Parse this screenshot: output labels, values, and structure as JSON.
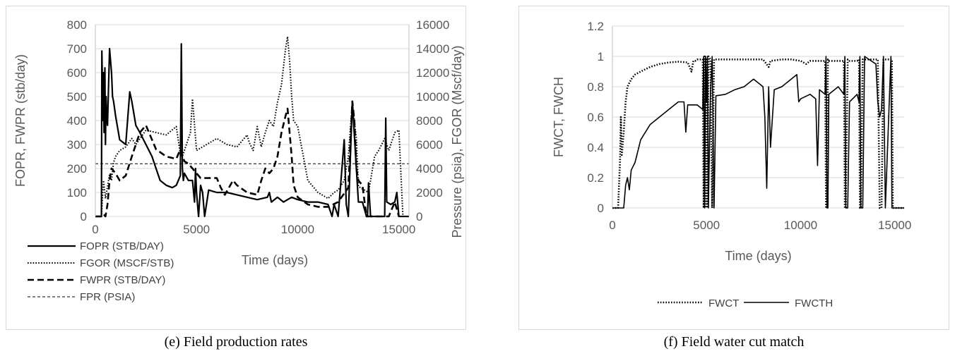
{
  "captions": {
    "e": "(e)  Field production rates",
    "f": "(f)  Field water cut match"
  },
  "chart_data": [
    {
      "type": "line",
      "xlabel": "Time (days)",
      "ylabel": "FOPR, FWPR (stb/day)",
      "y2label": "Pressure (psia), FGOR (Mscf/day)",
      "xlim": [
        0,
        15500
      ],
      "ylim": [
        0,
        800
      ],
      "y2lim": [
        0,
        16000
      ],
      "xticks": [
        0,
        5000,
        10000,
        15000
      ],
      "yticks": [
        0,
        100,
        200,
        300,
        400,
        500,
        600,
        700,
        800
      ],
      "y2ticks": [
        0,
        2000,
        4000,
        6000,
        8000,
        10000,
        12000,
        14000,
        16000
      ],
      "grid": "horizontal",
      "legend_position": "bottom-left",
      "series": [
        {
          "name": "FOPR  (STB/DAY)",
          "axis": "left",
          "style": "solid",
          "color": "#000000",
          "x": [
            0,
            300,
            320,
            380,
            400,
            430,
            470,
            500,
            530,
            560,
            600,
            700,
            800,
            850,
            900,
            1000,
            1200,
            1500,
            1700,
            1800,
            2000,
            2200,
            2500,
            2800,
            3000,
            3200,
            3500,
            3800,
            4000,
            4200,
            4250,
            4300,
            4350,
            4400,
            4600,
            4800,
            4900,
            4950,
            5000,
            5100,
            5200,
            5300,
            5400,
            5600,
            6000,
            6500,
            7000,
            7500,
            8000,
            8500,
            8600,
            8700,
            9000,
            9300,
            9500,
            9700,
            10000,
            10500,
            11000,
            11500,
            11700,
            11800,
            12000,
            12300,
            12400,
            12500,
            12700,
            12900,
            13000,
            13200,
            13400,
            13450,
            13500,
            13600,
            14000,
            14300,
            14350,
            14400,
            14600,
            14800,
            14900,
            15000,
            15100,
            15500
          ],
          "y": [
            0,
            0,
            690,
            400,
            600,
            350,
            620,
            300,
            500,
            420,
            380,
            700,
            600,
            500,
            480,
            420,
            320,
            300,
            520,
            480,
            380,
            350,
            300,
            250,
            200,
            150,
            130,
            120,
            130,
            170,
            720,
            200,
            150,
            180,
            150,
            150,
            60,
            200,
            100,
            0,
            130,
            100,
            0,
            110,
            100,
            100,
            90,
            80,
            70,
            80,
            100,
            60,
            80,
            60,
            70,
            80,
            70,
            60,
            60,
            50,
            0,
            50,
            0,
            320,
            50,
            0,
            480,
            200,
            60,
            60,
            0,
            0,
            140,
            0,
            0,
            0,
            410,
            60,
            50,
            60,
            100,
            0,
            0,
            0
          ]
        },
        {
          "name": "FGOR  (MSCF/STB)",
          "axis": "right",
          "style": "dotted",
          "color": "#000000",
          "x": [
            0,
            300,
            400,
            500,
            600,
            700,
            800,
            900,
            1000,
            1200,
            1500,
            1800,
            2000,
            2500,
            3000,
            3500,
            4000,
            4200,
            4300,
            4500,
            4700,
            4800,
            5000,
            5500,
            6000,
            6500,
            7000,
            7500,
            7600,
            7800,
            8000,
            8200,
            8400,
            8600,
            8800,
            9000,
            9200,
            9400,
            9500,
            9600,
            9700,
            9800,
            10000,
            10500,
            11000,
            11500,
            11800,
            12000,
            12300,
            12500,
            12700,
            12900,
            13000,
            13500,
            13800,
            14000,
            14300,
            14500,
            14800,
            15000,
            15200
          ],
          "y": [
            0,
            0,
            3000,
            1500,
            2500,
            3500,
            3000,
            4500,
            5000,
            5500,
            5800,
            6500,
            6000,
            7200,
            7000,
            6800,
            7500,
            5200,
            5000,
            6000,
            7000,
            9800,
            5500,
            6000,
            6500,
            6000,
            5800,
            6800,
            6200,
            5500,
            7500,
            5800,
            7000,
            8000,
            7500,
            9500,
            11000,
            14000,
            15000,
            13000,
            10000,
            8000,
            7500,
            3000,
            2000,
            1500,
            2000,
            2200,
            3000,
            5000,
            9500,
            6500,
            2500,
            2000,
            5000,
            5500,
            6500,
            5500,
            7000,
            7200,
            0
          ]
        },
        {
          "name": "FWPR  (STB/DAY)",
          "axis": "left",
          "style": "dashed",
          "color": "#000000",
          "x": [
            0,
            300,
            400,
            500,
            600,
            700,
            800,
            1000,
            1200,
            1500,
            1800,
            2000,
            2200,
            2500,
            2800,
            3000,
            3500,
            4000,
            4200,
            4400,
            4600,
            4800,
            5000,
            5200,
            5500,
            6000,
            6200,
            6400,
            6800,
            7000,
            7500,
            8000,
            8200,
            8400,
            8600,
            8800,
            9000,
            9200,
            9400,
            9500,
            9600,
            9700,
            9800,
            10000,
            10500,
            11000,
            11500,
            12000,
            12500,
            12700,
            12800,
            12900,
            13000,
            13200,
            13400,
            13600,
            14000,
            14500,
            14800,
            15000
          ],
          "y": [
            0,
            0,
            10,
            0,
            50,
            150,
            200,
            180,
            150,
            170,
            250,
            300,
            350,
            380,
            320,
            280,
            250,
            240,
            280,
            230,
            220,
            200,
            180,
            160,
            160,
            160,
            120,
            90,
            150,
            130,
            100,
            90,
            150,
            200,
            180,
            200,
            250,
            350,
            420,
            450,
            350,
            250,
            130,
            80,
            50,
            40,
            40,
            60,
            120,
            480,
            400,
            200,
            150,
            130,
            0,
            0,
            0,
            0,
            60,
            0
          ]
        },
        {
          "name": "FPR  (PSIA)",
          "axis": "left",
          "style": "thin-dashed",
          "color": "#000000",
          "x": [
            0,
            15500
          ],
          "y": [
            220,
            220
          ]
        }
      ]
    },
    {
      "type": "line",
      "xlabel": "Time (days)",
      "ylabel": "FWCT, FWCH",
      "xlim": [
        0,
        15500
      ],
      "ylim": [
        0,
        1.2
      ],
      "xticks": [
        0,
        5000,
        10000,
        15000
      ],
      "yticks": [
        0,
        0.2,
        0.4,
        0.6,
        0.8,
        1,
        1.2
      ],
      "grid": "horizontal",
      "legend_position": "bottom",
      "series": [
        {
          "name": "FWCT",
          "style": "dotted",
          "color": "#000000",
          "x": [
            0,
            300,
            400,
            450,
            500,
            600,
            700,
            800,
            1000,
            1200,
            1500,
            2000,
            2500,
            3000,
            3500,
            4000,
            4200,
            4300,
            4400,
            4500,
            4800,
            4850,
            4900,
            4950,
            5000,
            5050,
            5100,
            5200,
            5300,
            5400,
            5500,
            6000,
            7000,
            8000,
            8300,
            8400,
            9000,
            9500,
            10000,
            10300,
            10500,
            11000,
            11300,
            11350,
            11400,
            11450,
            11500,
            12000,
            12300,
            12350,
            12400,
            12500,
            12600,
            13000,
            13100,
            13150,
            13200,
            13300,
            13400,
            14000,
            14100,
            14200,
            14300,
            14400,
            14500,
            14800,
            14850,
            14900,
            14950,
            15000,
            15100,
            15500
          ],
          "y": [
            0,
            0,
            0.3,
            0.6,
            0.35,
            0.5,
            0.7,
            0.8,
            0.85,
            0.88,
            0.9,
            0.93,
            0.95,
            0.96,
            0.965,
            0.96,
            0.9,
            0.97,
            0.97,
            0.98,
            0.98,
            0,
            1,
            0,
            0.98,
            0,
            1,
            0.98,
            0,
            0.98,
            0.98,
            0.98,
            0.98,
            0.98,
            0.93,
            0.97,
            0.98,
            0.98,
            0.97,
            0.95,
            0.97,
            0.97,
            0.97,
            0,
            0,
            0.98,
            0.97,
            0.97,
            0.97,
            0,
            0,
            0.98,
            0.97,
            0.97,
            0.98,
            0,
            0,
            0.98,
            0.98,
            0.98,
            0.98,
            0,
            0,
            0.98,
            0.98,
            0.98,
            0.98,
            0,
            0,
            0,
            0,
            0
          ]
        },
        {
          "name": "FWCTH",
          "style": "solid",
          "color": "#000000",
          "x": [
            0,
            600,
            700,
            800,
            900,
            1000,
            1200,
            1500,
            2000,
            2500,
            3000,
            3500,
            3800,
            3900,
            4000,
            4500,
            4800,
            4850,
            4900,
            4950,
            5000,
            5050,
            5100,
            5200,
            5300,
            5400,
            5500,
            6000,
            6500,
            7000,
            7500,
            8000,
            8100,
            8200,
            8300,
            8400,
            8600,
            9000,
            9500,
            9800,
            9900,
            10000,
            10500,
            10800,
            10900,
            11000,
            11300,
            11350,
            11400,
            11450,
            11500,
            12000,
            12300,
            12350,
            12400,
            12500,
            12600,
            13000,
            13100,
            13150,
            13200,
            13300,
            13400,
            14000,
            14100,
            14200,
            14300,
            14400,
            14500,
            14800,
            14850,
            14900,
            14950,
            15000,
            15100,
            15500
          ],
          "y": [
            0,
            0,
            0.15,
            0.2,
            0.12,
            0.25,
            0.3,
            0.45,
            0.55,
            0.6,
            0.65,
            0.7,
            0.7,
            0.5,
            0.68,
            0.68,
            0.65,
            1,
            0,
            1,
            0.7,
            1,
            0,
            0.72,
            1,
            0,
            0.74,
            0.75,
            0.78,
            0.8,
            0.85,
            0.8,
            0.6,
            0.13,
            0.8,
            0.4,
            0.78,
            0.8,
            0.85,
            0.88,
            0.7,
            0.72,
            0.75,
            0.72,
            0.28,
            0.78,
            0.75,
            1,
            0,
            0,
            0.75,
            0.8,
            0.75,
            1,
            0,
            0,
            0.7,
            0.75,
            0.7,
            1,
            0,
            0,
            1,
            0.95,
            0.7,
            0.6,
            0.65,
            1,
            0,
            1,
            0,
            0,
            0,
            0,
            0,
            0
          ]
        }
      ]
    }
  ]
}
